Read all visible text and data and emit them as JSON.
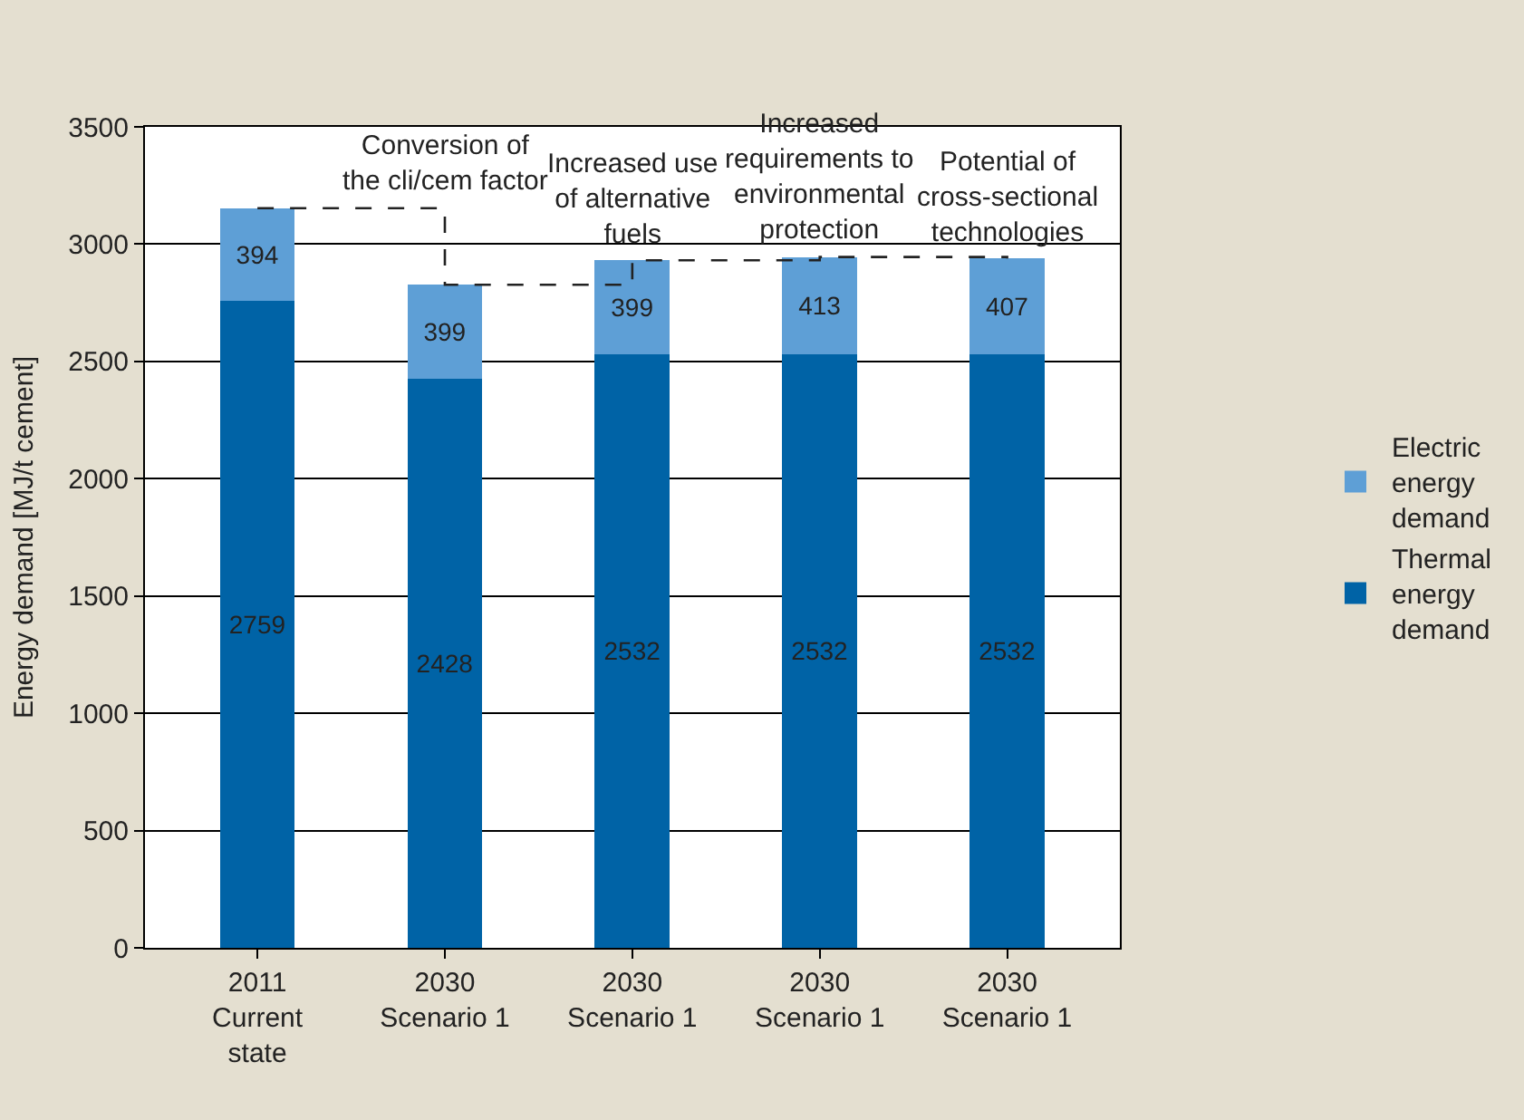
{
  "chart_data": {
    "type": "bar",
    "stacked": true,
    "ylabel": "Energy demand [MJ/t cement]",
    "categories": [
      "2011\nCurrent\nstate",
      "2030\nScenario 1",
      "2030\nScenario 1",
      "2030\nScenario 1",
      "2030\nScenario 1"
    ],
    "series": [
      {
        "type": "step",
        "color": "#222222",
        "line_style": "dashed",
        "values": [
          3153,
          2827,
          2931,
          2945,
          2939
        ]
      },
      {
        "name": "Thermal energy demand",
        "color": "#0063a6",
        "values": [
          2759,
          2428,
          2532,
          2532,
          2532
        ],
        "value_labels": [
          "2759",
          "2428",
          "2532",
          "2532",
          "2532"
        ]
      },
      {
        "name": "Electric energy demand",
        "color": "#5e9fd6",
        "values": [
          394,
          399,
          399,
          413,
          407
        ],
        "value_labels": [
          "394",
          "399",
          "399",
          "413",
          "407"
        ]
      }
    ],
    "ylim": [
      0,
      3500
    ],
    "yticks": [
      0,
      500,
      1000,
      1500,
      2000,
      2500,
      3000,
      3500
    ],
    "grid": "y",
    "legend": "right",
    "annotations": [
      {
        "text": "Conversion of\nthe cli/cem factor",
        "y": 3153
      },
      {
        "text": "Increased use\nof alternative\nfuels",
        "y": 2931
      },
      {
        "text": "Increased\nrequirements to\nenvironmental\nprotection",
        "y": 2945
      },
      {
        "text": "Potential of\ncross-sectional\ntechnologies",
        "y": 2939
      }
    ]
  }
}
